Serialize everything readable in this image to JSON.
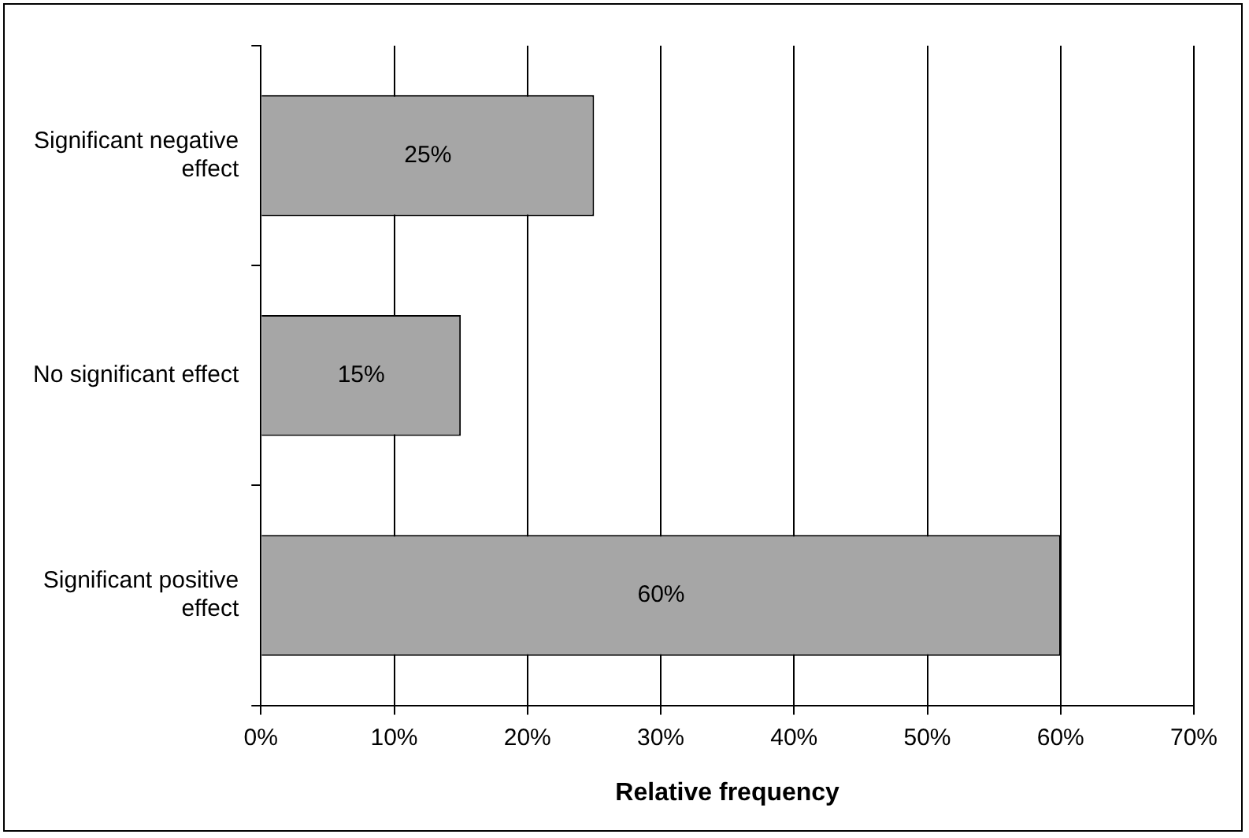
{
  "chart_data": {
    "type": "bar",
    "orientation": "horizontal",
    "xlabel": "Relative frequency",
    "categories": [
      "Significant negative effect",
      "No significant effect",
      "Significant positive effect"
    ],
    "values": [
      25,
      15,
      60
    ],
    "color": "#a6a6a6",
    "value_labels": [
      "25%",
      "15%",
      "60%"
    ],
    "xlim": [
      0,
      70
    ],
    "xticks": [
      {
        "value": 0,
        "label": "0%"
      },
      {
        "value": 10,
        "label": "10%"
      },
      {
        "value": 20,
        "label": "20%"
      },
      {
        "value": 30,
        "label": "30%"
      },
      {
        "value": 40,
        "label": "40%"
      },
      {
        "value": 50,
        "label": "50%"
      },
      {
        "value": 60,
        "label": "60%"
      },
      {
        "value": 70,
        "label": "70%"
      }
    ],
    "grid": "x",
    "legend": false
  }
}
